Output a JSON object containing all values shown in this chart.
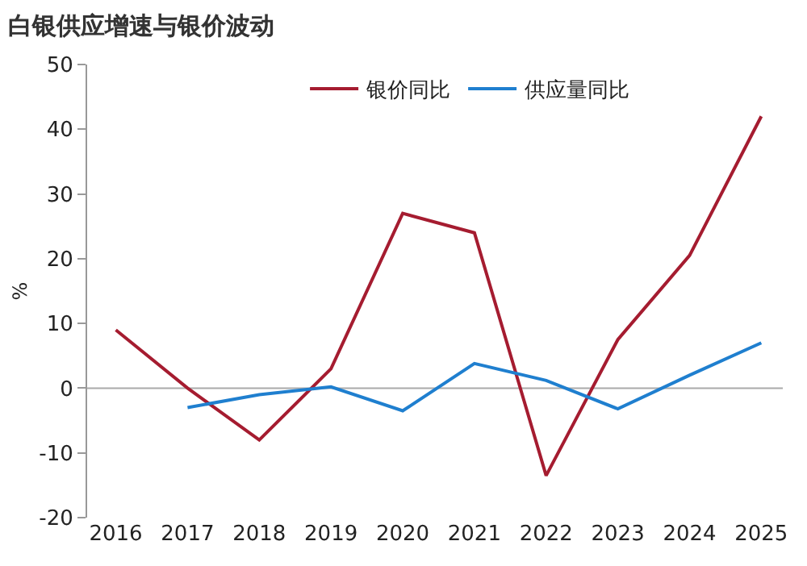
{
  "chart_data": {
    "type": "line",
    "title": "白银供应增速与银价波动",
    "ylabel": "%",
    "categories": [
      "2016",
      "2017",
      "2018",
      "2019",
      "2020",
      "2021",
      "2022",
      "2023",
      "2024",
      "2025"
    ],
    "series": [
      {
        "name": "银价同比",
        "color": "#a51c30",
        "values": [
          9,
          0,
          -8,
          3,
          27,
          24,
          -13.5,
          7.5,
          20.5,
          42
        ]
      },
      {
        "name": "供应量同比",
        "color": "#1f7fcf",
        "values": [
          null,
          -3,
          -1,
          0.2,
          -3.5,
          3.8,
          1.2,
          -3.2,
          2,
          7
        ]
      }
    ],
    "ylim": [
      -20,
      50
    ],
    "yticks": [
      -20,
      -10,
      0,
      10,
      20,
      30,
      40,
      50
    ],
    "grid": false,
    "ref_lines": [
      {
        "axis": "y",
        "value": 0,
        "color": "#aaaaaa"
      }
    ],
    "legend": "top",
    "marker": "none",
    "line_style": "solid"
  }
}
